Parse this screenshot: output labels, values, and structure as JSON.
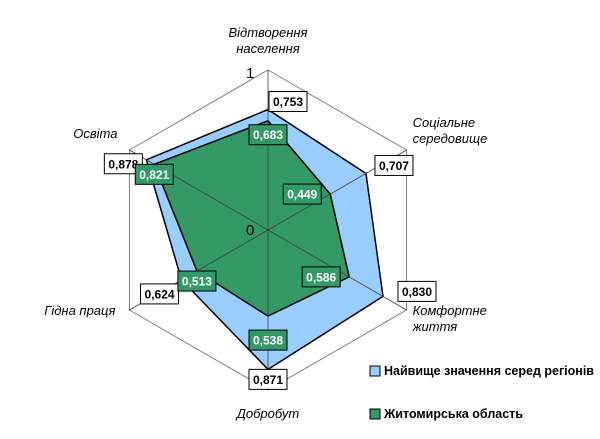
{
  "chart_data": {
    "type": "radar",
    "axes": [
      "Відтворення населення",
      "Соціальне середовище",
      "Комфортне життя",
      "Добробут",
      "Гідна праця",
      "Освіта"
    ],
    "axis_label_lines": [
      [
        "Відтворення",
        "населення"
      ],
      [
        "Соціальне",
        "середовище"
      ],
      [
        "Комфортне",
        "життя"
      ],
      [
        "Добробут"
      ],
      [
        "Гідна праця"
      ],
      [
        "Освіта"
      ]
    ],
    "range": [
      0,
      1
    ],
    "scale_labels": {
      "max": "1",
      "min": "0"
    },
    "grid": "hexagonal",
    "series": [
      {
        "name": "Найвище значення серед регіонів",
        "values": [
          0.753,
          0.707,
          0.83,
          0.871,
          0.624,
          0.878
        ],
        "labels": [
          "0,753",
          "0,707",
          "0,830",
          "0,871",
          "0,624",
          "0,878"
        ],
        "color": "#99ccff",
        "stroke": "#000000"
      },
      {
        "name": "Житомирська область",
        "values": [
          0.683,
          0.449,
          0.586,
          0.538,
          0.513,
          0.821
        ],
        "labels": [
          "0,683",
          "0,449",
          "0,586",
          "0,538",
          "0,513",
          "0,821"
        ],
        "color": "#339966",
        "stroke": "#000000"
      }
    ],
    "legend_position": "bottom-right"
  }
}
